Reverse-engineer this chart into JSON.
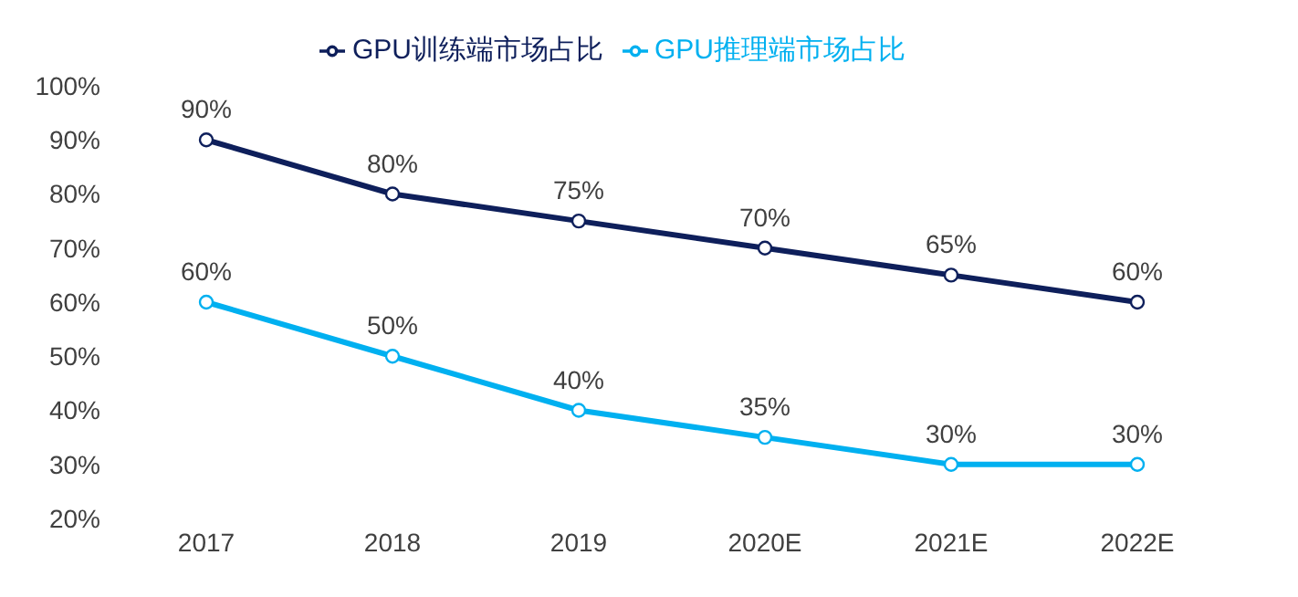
{
  "chart_data": {
    "type": "line",
    "categories": [
      "2017",
      "2018",
      "2019",
      "2020E",
      "2021E",
      "2022E"
    ],
    "series": [
      {
        "name": "GPU训练端市场占比",
        "color": "#0e1f5b",
        "values": [
          90,
          80,
          75,
          70,
          65,
          60
        ],
        "value_labels": [
          "90%",
          "80%",
          "75%",
          "70%",
          "65%",
          "60%"
        ]
      },
      {
        "name": "GPU推理端市场占比",
        "color": "#00b0f0",
        "values": [
          60,
          50,
          40,
          35,
          30,
          30
        ],
        "value_labels": [
          "60%",
          "50%",
          "40%",
          "35%",
          "30%",
          "30%"
        ]
      }
    ],
    "ylim": [
      20,
      100
    ],
    "yticks": [
      {
        "value": 20,
        "label": "20%"
      },
      {
        "value": 30,
        "label": "30%"
      },
      {
        "value": 40,
        "label": "40%"
      },
      {
        "value": 50,
        "label": "50%"
      },
      {
        "value": 60,
        "label": "60%"
      },
      {
        "value": 70,
        "label": "70%"
      },
      {
        "value": 80,
        "label": "80%"
      },
      {
        "value": 90,
        "label": "90%"
      },
      {
        "value": 100,
        "label": "100%"
      }
    ],
    "legend": "top",
    "marker": "circle",
    "line_style": "solid",
    "grid": false
  }
}
